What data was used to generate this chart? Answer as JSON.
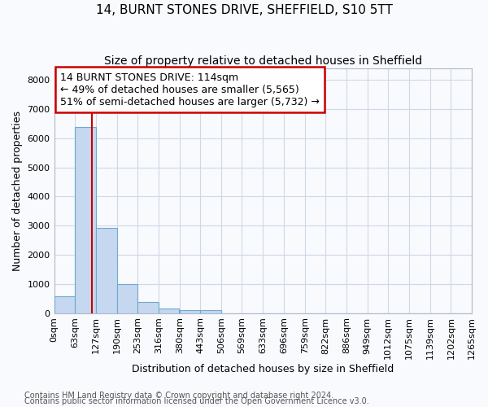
{
  "title": "14, BURNT STONES DRIVE, SHEFFIELD, S10 5TT",
  "subtitle": "Size of property relative to detached houses in Sheffield",
  "xlabel": "Distribution of detached houses by size in Sheffield",
  "ylabel": "Number of detached properties",
  "footnote1": "Contains HM Land Registry data © Crown copyright and database right 2024.",
  "footnote2": "Contains public sector information licensed under the Open Government Licence v3.0.",
  "bin_edges": [
    0,
    63,
    127,
    190,
    253,
    316,
    380,
    443,
    506,
    569,
    633,
    696,
    759,
    822,
    886,
    949,
    1012,
    1075,
    1139,
    1202,
    1265
  ],
  "bin_labels": [
    "0sqm",
    "63sqm",
    "127sqm",
    "190sqm",
    "253sqm",
    "316sqm",
    "380sqm",
    "443sqm",
    "506sqm",
    "569sqm",
    "633sqm",
    "696sqm",
    "759sqm",
    "822sqm",
    "886sqm",
    "949sqm",
    "1012sqm",
    "1075sqm",
    "1139sqm",
    "1202sqm",
    "1265sqm"
  ],
  "bar_heights": [
    570,
    6400,
    2930,
    1000,
    380,
    160,
    90,
    90,
    0,
    0,
    0,
    0,
    0,
    0,
    0,
    0,
    0,
    0,
    0,
    0
  ],
  "bar_color": "#c5d8f0",
  "bar_edgecolor": "#6fa8d0",
  "bar_linewidth": 0.8,
  "ylim": [
    0,
    8400
  ],
  "yticks": [
    0,
    1000,
    2000,
    3000,
    4000,
    5000,
    6000,
    7000,
    8000
  ],
  "property_size": 114,
  "property_label": "14 BURNT STONES DRIVE: 114sqm",
  "annotation_line1": "← 49% of detached houses are smaller (5,565)",
  "annotation_line2": "51% of semi-detached houses are larger (5,732) →",
  "vline_color": "#cc0000",
  "annotation_box_edgecolor": "#cc0000",
  "background_color": "#f8fafd",
  "grid_color": "#d0d8e8",
  "title_fontsize": 11,
  "subtitle_fontsize": 10,
  "xlabel_fontsize": 9,
  "ylabel_fontsize": 9,
  "tick_fontsize": 8,
  "annotation_fontsize": 9,
  "footnote_fontsize": 7
}
